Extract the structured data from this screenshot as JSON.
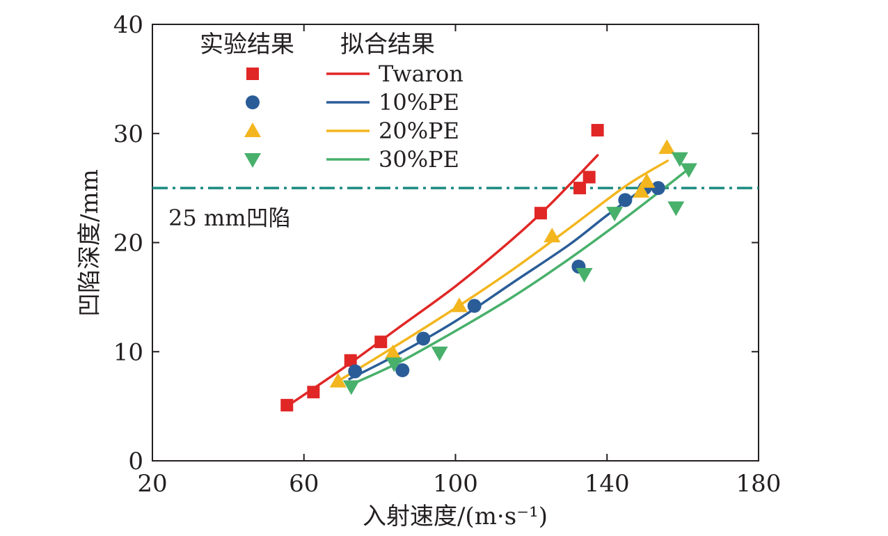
{
  "chart_data": {
    "type": "scatter",
    "xlabel": "入射速度/(m·s⁻¹)",
    "ylabel": "凹陷深度/mm",
    "xlim": [
      20,
      180
    ],
    "ylim": [
      0,
      40
    ],
    "xticks": [
      20,
      60,
      100,
      140,
      180
    ],
    "yticks": [
      0,
      10,
      20,
      30,
      40
    ],
    "grid": false,
    "legend": {
      "placement": "top-left",
      "header_markers": "实验结果",
      "header_lines": "拟合结果"
    },
    "reference_line": {
      "y": 25,
      "style": "dash-dot",
      "color": "#1a8a80",
      "label": "25 mm凹陷"
    },
    "series": [
      {
        "name": "Twaron",
        "marker": "square",
        "color": "#e02726",
        "points": [
          [
            55.5,
            5.1
          ],
          [
            62.5,
            6.3
          ],
          [
            72.3,
            9.2
          ],
          [
            80.3,
            10.9
          ],
          [
            122.5,
            22.7
          ],
          [
            132.8,
            25.0
          ],
          [
            135.3,
            26.0
          ],
          [
            137.5,
            30.3
          ]
        ],
        "fit": [
          [
            55.5,
            5.0
          ],
          [
            70,
            8.4
          ],
          [
            85,
            12.2
          ],
          [
            100,
            16.0
          ],
          [
            115,
            20.3
          ],
          [
            125,
            23.5
          ],
          [
            137.5,
            28.0
          ]
        ]
      },
      {
        "name": "10%PE",
        "marker": "circle",
        "color": "#2a5d98",
        "points": [
          [
            73.5,
            8.2
          ],
          [
            86.0,
            8.3
          ],
          [
            91.5,
            11.2
          ],
          [
            105.0,
            14.2
          ],
          [
            132.5,
            17.8
          ],
          [
            144.8,
            23.9
          ],
          [
            150.0,
            25.0
          ],
          [
            153.5,
            25.0
          ]
        ],
        "fit": [
          [
            72,
            7.5
          ],
          [
            85,
            9.8
          ],
          [
            100,
            12.8
          ],
          [
            115,
            16.3
          ],
          [
            130,
            19.8
          ],
          [
            140,
            22.5
          ],
          [
            151,
            25.3
          ]
        ]
      },
      {
        "name": "20%PE",
        "marker": "triangle-up",
        "color": "#f3b61f",
        "points": [
          [
            69.0,
            7.3
          ],
          [
            83.5,
            9.9
          ],
          [
            101.0,
            14.2
          ],
          [
            125.5,
            20.6
          ],
          [
            149.0,
            24.7
          ],
          [
            150.5,
            25.6
          ],
          [
            155.8,
            28.7
          ]
        ],
        "fit": [
          [
            69,
            7.3
          ],
          [
            85,
            10.7
          ],
          [
            100,
            14.0
          ],
          [
            115,
            17.5
          ],
          [
            130,
            21.3
          ],
          [
            145,
            25.2
          ],
          [
            156,
            27.5
          ]
        ]
      },
      {
        "name": "30%PE",
        "marker": "triangle-down",
        "color": "#48b06b",
        "points": [
          [
            72.5,
            6.8
          ],
          [
            83.8,
            8.9
          ],
          [
            95.8,
            9.9
          ],
          [
            134.0,
            17.1
          ],
          [
            142.0,
            22.7
          ],
          [
            158.2,
            23.2
          ],
          [
            159.2,
            27.7
          ],
          [
            161.6,
            26.7
          ]
        ],
        "fit": [
          [
            72.5,
            7.0
          ],
          [
            85,
            9.0
          ],
          [
            100,
            11.9
          ],
          [
            115,
            15.0
          ],
          [
            130,
            18.5
          ],
          [
            145,
            22.3
          ],
          [
            161,
            26.6
          ]
        ]
      }
    ]
  }
}
